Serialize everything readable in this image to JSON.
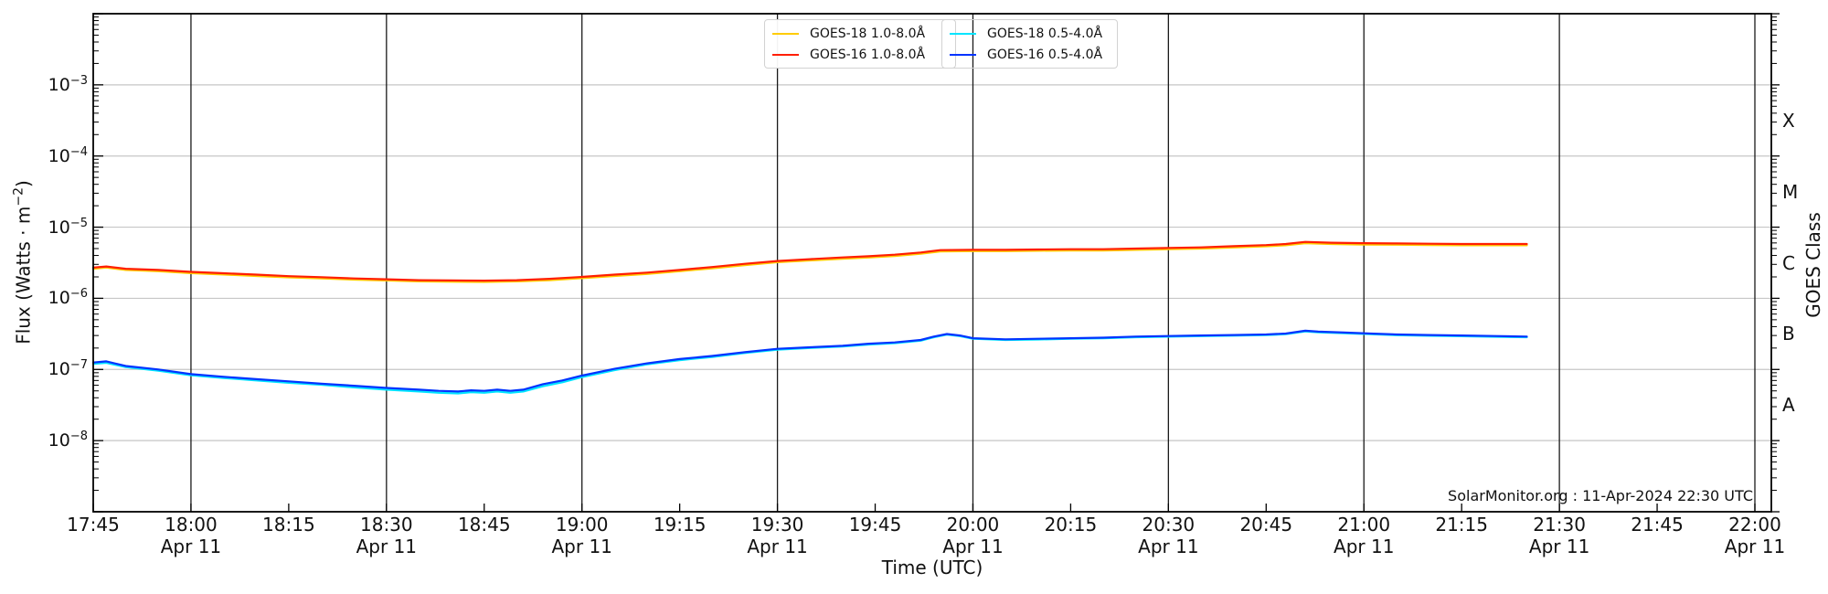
{
  "chart_data": {
    "type": "line",
    "xlabel": "Time (UTC)",
    "ylabel_prefix": "Flux (Watts · m",
    "ylabel_sup": "−2",
    "ylabel_suffix": ")",
    "ylabel_right": "GOES Class",
    "watermark": "SolarMonitor.org : 11-Apr-2024 22:30 UTC",
    "x_start_label": "17:45",
    "x_end_label": "22:00",
    "x_date_label": "Apr 11",
    "y_range": [
      1e-09,
      0.01
    ],
    "grid_vertical_color": "#1a1a1a",
    "grid_horizontal_color": "#c6c6c6",
    "axis_color": "#000000",
    "xticks": [
      {
        "t": 0,
        "label": "17:45",
        "date": false
      },
      {
        "t": 15,
        "label": "18:00",
        "date": true
      },
      {
        "t": 30,
        "label": "18:15",
        "date": false
      },
      {
        "t": 45,
        "label": "18:30",
        "date": true
      },
      {
        "t": 60,
        "label": "18:45",
        "date": false
      },
      {
        "t": 75,
        "label": "19:00",
        "date": true
      },
      {
        "t": 90,
        "label": "19:15",
        "date": false
      },
      {
        "t": 105,
        "label": "19:30",
        "date": true
      },
      {
        "t": 120,
        "label": "19:45",
        "date": false
      },
      {
        "t": 135,
        "label": "20:00",
        "date": true
      },
      {
        "t": 150,
        "label": "20:15",
        "date": false
      },
      {
        "t": 165,
        "label": "20:30",
        "date": true
      },
      {
        "t": 180,
        "label": "20:45",
        "date": false
      },
      {
        "t": 195,
        "label": "21:00",
        "date": true
      },
      {
        "t": 210,
        "label": "21:15",
        "date": false
      },
      {
        "t": 225,
        "label": "21:30",
        "date": true
      },
      {
        "t": 240,
        "label": "21:45",
        "date": false
      },
      {
        "t": 255,
        "label": "22:00",
        "date": true
      }
    ],
    "yticks": [
      {
        "exp": -3,
        "base": "10",
        "sup": "−3"
      },
      {
        "exp": -4,
        "base": "10",
        "sup": "−4"
      },
      {
        "exp": -5,
        "base": "10",
        "sup": "−5"
      },
      {
        "exp": -6,
        "base": "10",
        "sup": "−6"
      },
      {
        "exp": -7,
        "base": "10",
        "sup": "−7"
      },
      {
        "exp": -8,
        "base": "10",
        "sup": "−8"
      }
    ],
    "goes_classes": [
      {
        "label": "X",
        "flux": 0.0003162
      },
      {
        "label": "M",
        "flux": 3.162e-05
      },
      {
        "label": "C",
        "flux": 3.162e-06
      },
      {
        "label": "B",
        "flux": 3.162e-07
      },
      {
        "label": "A",
        "flux": 3.162e-08
      }
    ],
    "series": [
      {
        "name": "GOES-18 1.0-8.0Å",
        "color": "#ffcc00",
        "points": [
          [
            0,
            2.6e-06
          ],
          [
            2,
            2.7e-06
          ],
          [
            5,
            2.5e-06
          ],
          [
            10,
            2.4e-06
          ],
          [
            15,
            2.26e-06
          ],
          [
            20,
            2.16e-06
          ],
          [
            25,
            2.06e-06
          ],
          [
            30,
            1.97e-06
          ],
          [
            35,
            1.9e-06
          ],
          [
            40,
            1.83e-06
          ],
          [
            45,
            1.78e-06
          ],
          [
            50,
            1.73e-06
          ],
          [
            55,
            1.71e-06
          ],
          [
            60,
            1.7e-06
          ],
          [
            65,
            1.73e-06
          ],
          [
            70,
            1.8e-06
          ],
          [
            75,
            1.92e-06
          ],
          [
            80,
            2.06e-06
          ],
          [
            85,
            2.2e-06
          ],
          [
            90,
            2.4e-06
          ],
          [
            95,
            2.64e-06
          ],
          [
            100,
            2.93e-06
          ],
          [
            105,
            3.22e-06
          ],
          [
            110,
            3.4e-06
          ],
          [
            115,
            3.6e-06
          ],
          [
            119,
            3.74e-06
          ],
          [
            123,
            3.94e-06
          ],
          [
            127,
            4.22e-06
          ],
          [
            130,
            4.56e-06
          ],
          [
            135,
            4.6e-06
          ],
          [
            140,
            4.6e-06
          ],
          [
            145,
            4.66e-06
          ],
          [
            150,
            4.7e-06
          ],
          [
            155,
            4.7e-06
          ],
          [
            160,
            4.8e-06
          ],
          [
            165,
            4.9e-06
          ],
          [
            170,
            5e-06
          ],
          [
            175,
            5.18e-06
          ],
          [
            180,
            5.38e-06
          ],
          [
            183,
            5.57e-06
          ],
          [
            186,
            5.95e-06
          ],
          [
            190,
            5.8e-06
          ],
          [
            195,
            5.7e-06
          ],
          [
            200,
            5.66e-06
          ],
          [
            205,
            5.62e-06
          ],
          [
            210,
            5.57e-06
          ],
          [
            215,
            5.57e-06
          ],
          [
            220,
            5.57e-06
          ]
        ]
      },
      {
        "name": "GOES-16 1.0-8.0Å",
        "color": "#ff1e00",
        "points": [
          [
            0,
            2.7e-06
          ],
          [
            2,
            2.8e-06
          ],
          [
            5,
            2.6e-06
          ],
          [
            10,
            2.5e-06
          ],
          [
            15,
            2.35e-06
          ],
          [
            20,
            2.25e-06
          ],
          [
            25,
            2.15e-06
          ],
          [
            30,
            2.05e-06
          ],
          [
            35,
            1.98e-06
          ],
          [
            40,
            1.9e-06
          ],
          [
            45,
            1.85e-06
          ],
          [
            50,
            1.8e-06
          ],
          [
            55,
            1.78e-06
          ],
          [
            60,
            1.77e-06
          ],
          [
            65,
            1.8e-06
          ],
          [
            70,
            1.88e-06
          ],
          [
            75,
            2e-06
          ],
          [
            80,
            2.15e-06
          ],
          [
            85,
            2.3e-06
          ],
          [
            90,
            2.5e-06
          ],
          [
            95,
            2.75e-06
          ],
          [
            100,
            3.05e-06
          ],
          [
            105,
            3.35e-06
          ],
          [
            110,
            3.55e-06
          ],
          [
            115,
            3.75e-06
          ],
          [
            119,
            3.9e-06
          ],
          [
            123,
            4.1e-06
          ],
          [
            127,
            4.4e-06
          ],
          [
            130,
            4.75e-06
          ],
          [
            135,
            4.8e-06
          ],
          [
            140,
            4.8e-06
          ],
          [
            145,
            4.85e-06
          ],
          [
            150,
            4.9e-06
          ],
          [
            155,
            4.9e-06
          ],
          [
            160,
            5e-06
          ],
          [
            165,
            5.1e-06
          ],
          [
            170,
            5.2e-06
          ],
          [
            175,
            5.4e-06
          ],
          [
            180,
            5.6e-06
          ],
          [
            183,
            5.8e-06
          ],
          [
            186,
            6.2e-06
          ],
          [
            190,
            6.05e-06
          ],
          [
            195,
            5.95e-06
          ],
          [
            200,
            5.9e-06
          ],
          [
            205,
            5.85e-06
          ],
          [
            210,
            5.8e-06
          ],
          [
            215,
            5.8e-06
          ],
          [
            220,
            5.8e-06
          ]
        ]
      },
      {
        "name": "GOES-18 0.5-4.0Å",
        "color": "#00e5ff",
        "points": [
          [
            0,
            1.2e-07
          ],
          [
            2,
            1.24e-07
          ],
          [
            5,
            1.08e-07
          ],
          [
            10,
            9.6e-08
          ],
          [
            15,
            8.3e-08
          ],
          [
            20,
            7.6e-08
          ],
          [
            25,
            7e-08
          ],
          [
            30,
            6.5e-08
          ],
          [
            35,
            6.1e-08
          ],
          [
            40,
            5.6e-08
          ],
          [
            45,
            5.2e-08
          ],
          [
            50,
            4.9e-08
          ],
          [
            53,
            4.7e-08
          ],
          [
            56,
            4.6e-08
          ],
          [
            58,
            4.8e-08
          ],
          [
            60,
            4.7e-08
          ],
          [
            62,
            4.9e-08
          ],
          [
            64,
            4.7e-08
          ],
          [
            66,
            4.9e-08
          ],
          [
            69,
            5.8e-08
          ],
          [
            72,
            6.6e-08
          ],
          [
            75,
            7.8e-08
          ],
          [
            80,
            9.8e-08
          ],
          [
            85,
            1.18e-07
          ],
          [
            90,
            1.35e-07
          ],
          [
            95,
            1.5e-07
          ],
          [
            100,
            1.7e-07
          ],
          [
            105,
            1.9e-07
          ],
          [
            110,
            2e-07
          ],
          [
            115,
            2.1e-07
          ],
          [
            119,
            2.24e-07
          ],
          [
            123,
            2.34e-07
          ],
          [
            127,
            2.54e-07
          ],
          [
            129,
            2.84e-07
          ],
          [
            131,
            3.08e-07
          ],
          [
            133,
            2.94e-07
          ],
          [
            135,
            2.7e-07
          ],
          [
            140,
            2.6e-07
          ],
          [
            145,
            2.64e-07
          ],
          [
            150,
            2.7e-07
          ],
          [
            155,
            2.74e-07
          ],
          [
            160,
            2.84e-07
          ],
          [
            165,
            2.89e-07
          ],
          [
            170,
            2.94e-07
          ],
          [
            175,
            2.99e-07
          ],
          [
            180,
            3.04e-07
          ],
          [
            183,
            3.13e-07
          ],
          [
            186,
            3.42e-07
          ],
          [
            188,
            3.32e-07
          ],
          [
            192,
            3.22e-07
          ],
          [
            196,
            3.13e-07
          ],
          [
            200,
            3.03e-07
          ],
          [
            205,
            2.98e-07
          ],
          [
            210,
            2.93e-07
          ],
          [
            215,
            2.88e-07
          ],
          [
            220,
            2.84e-07
          ]
        ]
      },
      {
        "name": "GOES-16 0.5-4.0Å",
        "color": "#0033ff",
        "points": [
          [
            0,
            1.25e-07
          ],
          [
            2,
            1.3e-07
          ],
          [
            5,
            1.12e-07
          ],
          [
            10,
            1e-07
          ],
          [
            15,
            8.6e-08
          ],
          [
            20,
            7.9e-08
          ],
          [
            25,
            7.3e-08
          ],
          [
            30,
            6.8e-08
          ],
          [
            35,
            6.3e-08
          ],
          [
            40,
            5.9e-08
          ],
          [
            45,
            5.5e-08
          ],
          [
            50,
            5.2e-08
          ],
          [
            53,
            5e-08
          ],
          [
            56,
            4.9e-08
          ],
          [
            58,
            5.1e-08
          ],
          [
            60,
            5e-08
          ],
          [
            62,
            5.2e-08
          ],
          [
            64,
            5e-08
          ],
          [
            66,
            5.2e-08
          ],
          [
            69,
            6.2e-08
          ],
          [
            72,
            7e-08
          ],
          [
            75,
            8.2e-08
          ],
          [
            80,
            1.02e-07
          ],
          [
            85,
            1.22e-07
          ],
          [
            90,
            1.4e-07
          ],
          [
            95,
            1.55e-07
          ],
          [
            100,
            1.75e-07
          ],
          [
            105,
            1.95e-07
          ],
          [
            110,
            2.05e-07
          ],
          [
            115,
            2.15e-07
          ],
          [
            119,
            2.3e-07
          ],
          [
            123,
            2.4e-07
          ],
          [
            127,
            2.6e-07
          ],
          [
            129,
            2.9e-07
          ],
          [
            131,
            3.15e-07
          ],
          [
            133,
            3e-07
          ],
          [
            135,
            2.75e-07
          ],
          [
            140,
            2.65e-07
          ],
          [
            145,
            2.7e-07
          ],
          [
            150,
            2.75e-07
          ],
          [
            155,
            2.8e-07
          ],
          [
            160,
            2.9e-07
          ],
          [
            165,
            2.95e-07
          ],
          [
            170,
            3e-07
          ],
          [
            175,
            3.05e-07
          ],
          [
            180,
            3.1e-07
          ],
          [
            183,
            3.2e-07
          ],
          [
            186,
            3.5e-07
          ],
          [
            188,
            3.4e-07
          ],
          [
            192,
            3.3e-07
          ],
          [
            196,
            3.2e-07
          ],
          [
            200,
            3.1e-07
          ],
          [
            205,
            3.05e-07
          ],
          [
            210,
            3e-07
          ],
          [
            215,
            2.95e-07
          ],
          [
            220,
            2.9e-07
          ]
        ]
      }
    ],
    "legend_boxes": [
      {
        "series_indexes": [
          0,
          1
        ]
      },
      {
        "series_indexes": [
          2,
          3
        ]
      }
    ]
  }
}
